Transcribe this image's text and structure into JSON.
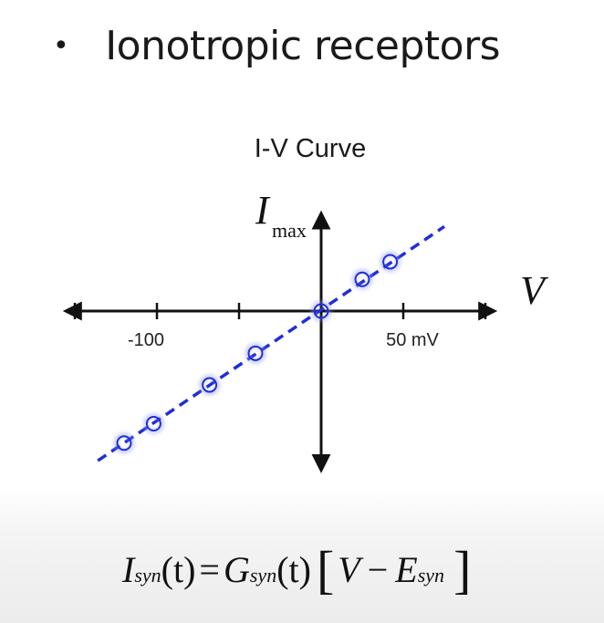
{
  "heading": {
    "bullet": "•",
    "text": "Ionotropic receptors"
  },
  "chart_data": {
    "type": "scatter",
    "title": "I-V Curve",
    "xlabel": "V",
    "ylabel": "I",
    "ylabel_subscript": "max",
    "x_tick_labels": [
      {
        "value": -100,
        "label": "-100"
      },
      {
        "value": 50,
        "label": "50 mV"
      }
    ],
    "x_ticks": [
      -150,
      -100,
      -50,
      0,
      50,
      100
    ],
    "xlim": [
      -155,
      105
    ],
    "ylim": [
      -90,
      55
    ],
    "points": [
      {
        "x": -120,
        "y": -75
      },
      {
        "x": -102,
        "y": -64
      },
      {
        "x": -68,
        "y": -42
      },
      {
        "x": -40,
        "y": -24
      },
      {
        "x": 0,
        "y": 0
      },
      {
        "x": 25,
        "y": 18
      },
      {
        "x": 42,
        "y": 28
      }
    ],
    "fit_line": {
      "style": "dashed",
      "x": [
        -136,
        75
      ],
      "y": [
        -85,
        48
      ]
    },
    "colors": {
      "series": "#1f2fd6",
      "axes": "#111111"
    }
  },
  "equation": {
    "lhs_symbol": "I",
    "lhs_sub": "syn",
    "lhs_arg": "(t)",
    "equals": "=",
    "rhs_symbol": "G",
    "rhs_sub": "syn",
    "rhs_arg": "(t)",
    "bracket_open": "[",
    "v": "V",
    "minus": "−",
    "e_symbol": "E",
    "e_sub": "syn",
    "bracket_close": "]"
  }
}
